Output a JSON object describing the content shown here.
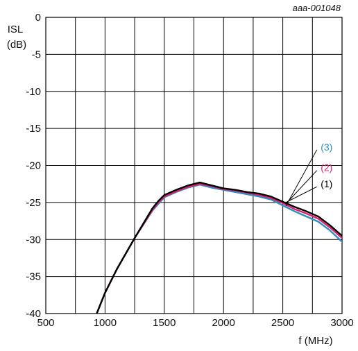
{
  "chart_data": {
    "type": "line",
    "figure_id": "aaa-001048",
    "title": "",
    "ylabel_line1": "ISL",
    "ylabel_line2": "(dB)",
    "xlabel": "f (MHz)",
    "xlim": [
      500,
      3000
    ],
    "ylim": [
      -40,
      0
    ],
    "x_ticks": [
      500,
      1000,
      1500,
      2000,
      2500,
      3000
    ],
    "y_ticks": [
      0,
      -5,
      -10,
      -15,
      -20,
      -25,
      -30,
      -35,
      -40
    ],
    "x_grid_step": 250,
    "y_grid_step": 5,
    "grid": true,
    "legend": "callout labels at right",
    "series": [
      {
        "name": "(1)",
        "color": "#000000",
        "points": [
          [
            930,
            -40
          ],
          [
            1000,
            -37.2
          ],
          [
            1100,
            -34
          ],
          [
            1250,
            -29.8
          ],
          [
            1400,
            -25.8
          ],
          [
            1450,
            -24.8
          ],
          [
            1500,
            -24.0
          ],
          [
            1600,
            -23.3
          ],
          [
            1700,
            -22.7
          ],
          [
            1800,
            -22.3
          ],
          [
            1900,
            -22.7
          ],
          [
            2000,
            -23.1
          ],
          [
            2100,
            -23.3
          ],
          [
            2200,
            -23.6
          ],
          [
            2300,
            -23.8
          ],
          [
            2400,
            -24.2
          ],
          [
            2500,
            -24.9
          ],
          [
            2600,
            -25.6
          ],
          [
            2700,
            -26.2
          ],
          [
            2800,
            -26.9
          ],
          [
            2900,
            -28.1
          ],
          [
            3000,
            -29.5
          ]
        ]
      },
      {
        "name": "(2)",
        "color": "#e0206c",
        "points": [
          [
            930,
            -40
          ],
          [
            1000,
            -37.2
          ],
          [
            1100,
            -34
          ],
          [
            1250,
            -29.8
          ],
          [
            1400,
            -26.0
          ],
          [
            1450,
            -25.0
          ],
          [
            1500,
            -24.2
          ],
          [
            1600,
            -23.5
          ],
          [
            1700,
            -22.9
          ],
          [
            1800,
            -22.5
          ],
          [
            1900,
            -22.8
          ],
          [
            2000,
            -23.2
          ],
          [
            2100,
            -23.4
          ],
          [
            2200,
            -23.7
          ],
          [
            2300,
            -24.0
          ],
          [
            2400,
            -24.4
          ],
          [
            2500,
            -25.1
          ],
          [
            2600,
            -25.9
          ],
          [
            2700,
            -26.5
          ],
          [
            2800,
            -27.2
          ],
          [
            2900,
            -28.4
          ],
          [
            3000,
            -29.8
          ]
        ]
      },
      {
        "name": "(3)",
        "color": "#2a8fc4",
        "points": [
          [
            930,
            -40
          ],
          [
            1000,
            -37.2
          ],
          [
            1100,
            -34
          ],
          [
            1250,
            -29.8
          ],
          [
            1400,
            -26.1
          ],
          [
            1450,
            -25.2
          ],
          [
            1500,
            -24.3
          ],
          [
            1600,
            -23.6
          ],
          [
            1700,
            -23.0
          ],
          [
            1800,
            -22.6
          ],
          [
            1900,
            -23.0
          ],
          [
            2000,
            -23.3
          ],
          [
            2100,
            -23.6
          ],
          [
            2200,
            -23.9
          ],
          [
            2300,
            -24.2
          ],
          [
            2400,
            -24.6
          ],
          [
            2500,
            -25.4
          ],
          [
            2600,
            -26.2
          ],
          [
            2700,
            -26.9
          ],
          [
            2800,
            -27.6
          ],
          [
            2900,
            -28.8
          ],
          [
            3000,
            -30.3
          ]
        ]
      }
    ],
    "callouts": [
      {
        "series": "(1)",
        "label": "(1)",
        "label_at": [
          2870,
          -22.5
        ],
        "point": [
          2525,
          -25.0
        ]
      },
      {
        "series": "(2)",
        "label": "(2)",
        "label_at": [
          2870,
          -20.3
        ],
        "point": [
          2525,
          -25.2
        ]
      },
      {
        "series": "(3)",
        "label": "(3)",
        "label_at": [
          2870,
          -17.5
        ],
        "point": [
          2525,
          -25.5
        ]
      }
    ]
  }
}
